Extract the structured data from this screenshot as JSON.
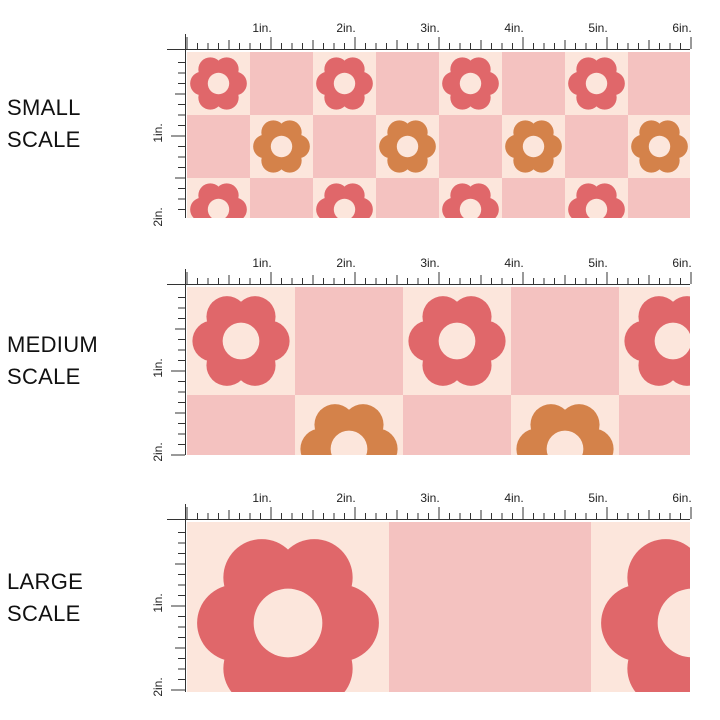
{
  "panels": [
    {
      "id": "small",
      "label": [
        "SMALL",
        "SCALE"
      ]
    },
    {
      "id": "medium",
      "label": [
        "MEDIUM",
        "SCALE"
      ]
    },
    {
      "id": "large",
      "label": [
        "LARGE",
        "SCALE"
      ]
    }
  ],
  "ruler": {
    "top_labels": [
      "1in.",
      "2in.",
      "3in.",
      "4in.",
      "5in.",
      "6in."
    ],
    "side_labels": [
      "1in.",
      "2in."
    ]
  },
  "colors": {
    "cream": "#fce6dc",
    "pink": "#f4c2c0",
    "red_flower": "#e0676a",
    "orange_flower": "#d4824a",
    "flower_center": "#fce6dc",
    "ruler": "#333333"
  }
}
